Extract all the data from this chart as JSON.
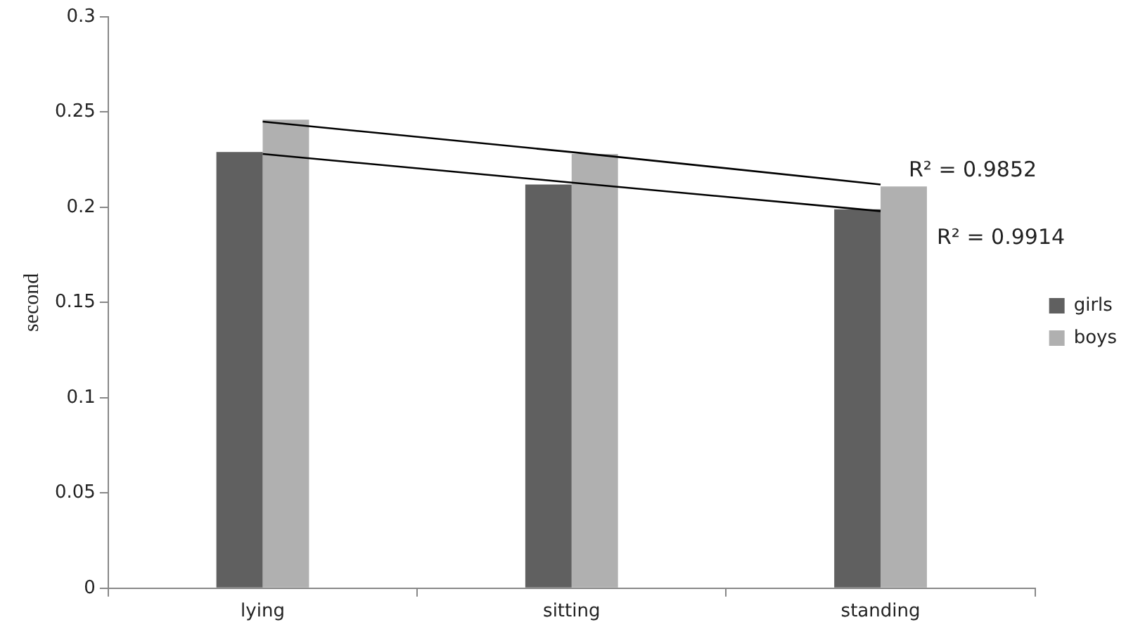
{
  "chart_data": {
    "type": "bar",
    "ylabel": "second",
    "categories": [
      "lying",
      "sitting",
      "standing"
    ],
    "series": [
      {
        "name": "girls",
        "color": "#606060",
        "values": [
          0.229,
          0.212,
          0.199
        ]
      },
      {
        "name": "boys",
        "color": "#b0b0b0",
        "values": [
          0.246,
          0.228,
          0.211
        ]
      },
      {
        "type": "line",
        "color": "#000000",
        "values": [
          0.245,
          0.229,
          0.212
        ]
      },
      {
        "type": "line",
        "color": "#000000",
        "values": [
          0.228,
          0.213,
          0.198
        ]
      }
    ],
    "annotations": [
      "R² = 0.9852",
      "R² = 0.9914"
    ],
    "ylim": [
      0,
      0.3
    ],
    "yticks": [
      0,
      0.05,
      0.1,
      0.15,
      0.2,
      0.25,
      0.3
    ],
    "grid": false,
    "legend": "right"
  }
}
